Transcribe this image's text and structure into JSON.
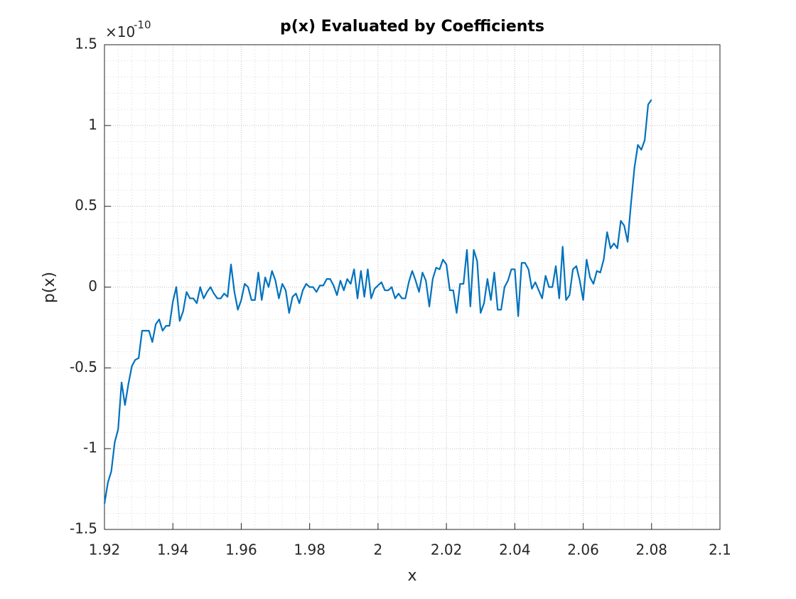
{
  "chart_data": {
    "type": "line",
    "title": "p(x) Evaluated by Coefficients",
    "x_label": "x",
    "y_label": "p(x)",
    "y_exponent": {
      "base": "×10",
      "power": "-10"
    },
    "xlim": [
      1.92,
      2.1
    ],
    "xticks": [
      1.92,
      1.94,
      1.96,
      1.98,
      2,
      2.02,
      2.04,
      2.06,
      2.08,
      2.1
    ],
    "ylim": [
      -1.5,
      1.5
    ],
    "yticks": [
      -1.5,
      -1,
      -0.5,
      0,
      0.5,
      1,
      1.5
    ],
    "grid": true,
    "minor_grid": true,
    "x": [
      1.92,
      1.921,
      1.922,
      1.923,
      1.924,
      1.925,
      1.926,
      1.927,
      1.928,
      1.929,
      1.93,
      1.931,
      1.932,
      1.933,
      1.934,
      1.935,
      1.936,
      1.937,
      1.938,
      1.939,
      1.94,
      1.941,
      1.942,
      1.943,
      1.944,
      1.945,
      1.946,
      1.947,
      1.948,
      1.949,
      1.95,
      1.951,
      1.952,
      1.953,
      1.954,
      1.955,
      1.956,
      1.957,
      1.958,
      1.959,
      1.96,
      1.961,
      1.962,
      1.963,
      1.964,
      1.965,
      1.966,
      1.967,
      1.968,
      1.969,
      1.97,
      1.971,
      1.972,
      1.973,
      1.974,
      1.975,
      1.976,
      1.977,
      1.978,
      1.979,
      1.98,
      1.981,
      1.982,
      1.983,
      1.984,
      1.985,
      1.986,
      1.987,
      1.988,
      1.989,
      1.99,
      1.991,
      1.992,
      1.993,
      1.994,
      1.995,
      1.996,
      1.997,
      1.998,
      1.999,
      2,
      2.001,
      2.002,
      2.003,
      2.004,
      2.005,
      2.006,
      2.007,
      2.008,
      2.009,
      2.01,
      2.011,
      2.012,
      2.013,
      2.014,
      2.015,
      2.016,
      2.017,
      2.018,
      2.019,
      2.02,
      2.021,
      2.022,
      2.023,
      2.024,
      2.025,
      2.026,
      2.027,
      2.028,
      2.029,
      2.03,
      2.031,
      2.032,
      2.033,
      2.034,
      2.035,
      2.036,
      2.037,
      2.038,
      2.039,
      2.04,
      2.041,
      2.042,
      2.043,
      2.044,
      2.045,
      2.046,
      2.047,
      2.048,
      2.049,
      2.05,
      2.051,
      2.052,
      2.053,
      2.054,
      2.055,
      2.056,
      2.057,
      2.058,
      2.059,
      2.06,
      2.061,
      2.062,
      2.063,
      2.064,
      2.065,
      2.066,
      2.067,
      2.068,
      2.069,
      2.07,
      2.071,
      2.072,
      2.073,
      2.074,
      2.075,
      2.076,
      2.077,
      2.078,
      2.079,
      2.08
    ],
    "series": [
      {
        "name": "p(x)",
        "color": "#0072bd",
        "values": [
          -1.34,
          -1.21,
          -1.14,
          -0.96,
          -0.88,
          -0.59,
          -0.73,
          -0.6,
          -0.49,
          -0.45,
          -0.44,
          -0.27,
          -0.27,
          -0.27,
          -0.34,
          -0.23,
          -0.2,
          -0.27,
          -0.24,
          -0.24,
          -0.09,
          0.0,
          -0.21,
          -0.15,
          -0.03,
          -0.07,
          -0.07,
          -0.1,
          0.0,
          -0.07,
          -0.03,
          0.0,
          -0.04,
          -0.07,
          -0.07,
          -0.04,
          -0.06,
          0.14,
          -0.03,
          -0.14,
          -0.08,
          0.02,
          0.0,
          -0.08,
          -0.08,
          0.09,
          -0.08,
          0.06,
          0.0,
          0.1,
          0.04,
          -0.07,
          0.02,
          -0.02,
          -0.16,
          -0.06,
          -0.04,
          -0.1,
          -0.02,
          0.02,
          0.0,
          0.0,
          -0.03,
          0.01,
          0.01,
          0.05,
          0.05,
          0.01,
          -0.05,
          0.04,
          -0.02,
          0.05,
          0.02,
          0.11,
          -0.07,
          0.1,
          -0.06,
          0.11,
          -0.07,
          -0.01,
          0.01,
          0.03,
          -0.02,
          -0.02,
          0.0,
          -0.07,
          -0.04,
          -0.07,
          -0.07,
          0.03,
          0.1,
          0.04,
          -0.03,
          0.09,
          0.04,
          -0.12,
          0.05,
          0.12,
          0.11,
          0.17,
          0.14,
          -0.02,
          -0.02,
          -0.16,
          0.02,
          0.02,
          0.23,
          -0.12,
          0.23,
          0.16,
          -0.16,
          -0.1,
          0.05,
          -0.08,
          0.09,
          -0.14,
          -0.14,
          0.0,
          0.04,
          0.11,
          0.11,
          -0.18,
          0.15,
          0.15,
          0.11,
          -0.01,
          0.03,
          -0.02,
          -0.07,
          0.07,
          0.0,
          0.0,
          0.13,
          -0.07,
          0.25,
          -0.08,
          -0.05,
          0.11,
          0.13,
          0.04,
          -0.08,
          0.17,
          0.06,
          0.02,
          0.1,
          0.09,
          0.17,
          0.34,
          0.24,
          0.27,
          0.24,
          0.41,
          0.38,
          0.28,
          0.52,
          0.74,
          0.88,
          0.85,
          0.91,
          1.13,
          1.16
        ]
      }
    ]
  }
}
